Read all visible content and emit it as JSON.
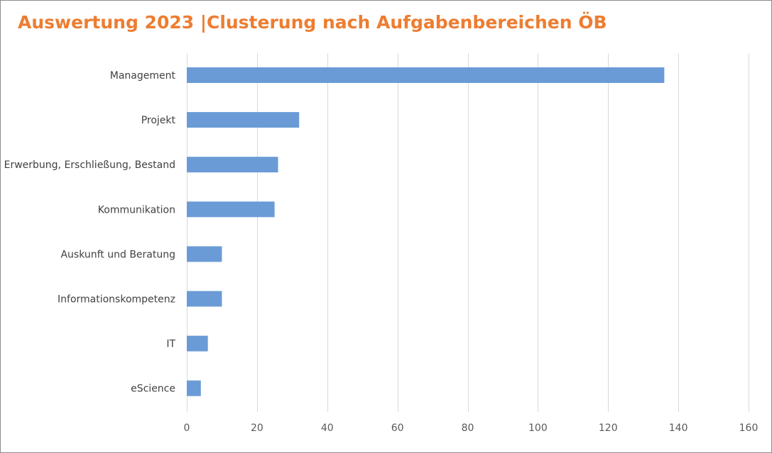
{
  "chart_data": {
    "type": "bar",
    "orientation": "horizontal",
    "title": "Auswertung 2023 |Clusterung nach Aufgabenbereichen ÖB",
    "categories": [
      "Management",
      "Projekt",
      "Erwerbung, Erschließung, Bestand",
      "Kommunikation",
      "Auskunft und Beratung",
      "Informationskompetenz",
      "IT",
      "eScience"
    ],
    "values": [
      136,
      32,
      26,
      25,
      10,
      10,
      6,
      4
    ],
    "xlim": [
      0,
      160
    ],
    "xticks": [
      0,
      20,
      40,
      60,
      80,
      100,
      120,
      140,
      160
    ],
    "grid": "vertical",
    "legend": "none",
    "colors": {
      "bar": "#6A9BD6",
      "title": "#ED7D31",
      "grid": "#D9D9D9"
    }
  }
}
